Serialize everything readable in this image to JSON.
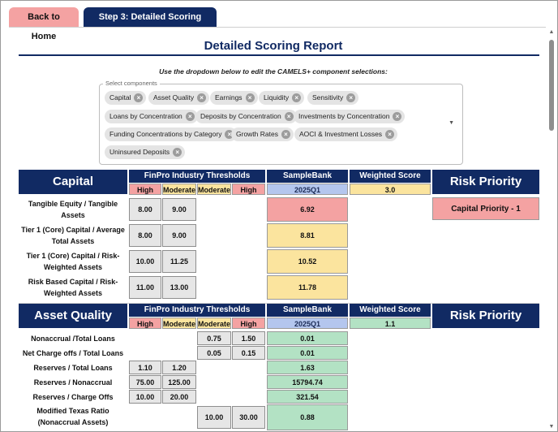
{
  "tabs": {
    "home": "Back to Home",
    "report": "Step 3: Detailed Scoring Report"
  },
  "page": {
    "title": "Detailed Scoring Report",
    "instructions": "Use the dropdown below to edit the CAMELS+ component selections:"
  },
  "selector": {
    "legend": "Select components",
    "chips": [
      "Capital",
      "Asset Quality",
      "Earnings",
      "Liquidity",
      "Sensitivity",
      "Loans by Concentration",
      "Deposits by Concentration",
      "Investments by Concentration",
      "Funding Concentrations by Category",
      "Growth Rates",
      "AOCI & Investment Losses",
      "Uninsured Deposits"
    ]
  },
  "capital": {
    "title": "Capital",
    "thresholds_label": "FinPro Industry Thresholds",
    "bank_label": "SampleBank",
    "wscore_label": "Weighted Score",
    "risk_label": "Risk Priority",
    "sub": [
      "High",
      "Moderate",
      "Moderate",
      "High"
    ],
    "period": "2025Q1",
    "weighted_score": "3.0",
    "risk_priority": "Capital Priority - 1",
    "rows": [
      {
        "label": "Tangible Equity / Tangible Assets",
        "t1": "8.00",
        "t2": "9.00",
        "value": "6.92",
        "status": "red"
      },
      {
        "label": "Tier 1 (Core) Capital / Average Total Assets",
        "t1": "8.00",
        "t2": "9.00",
        "value": "8.81",
        "status": "yellow"
      },
      {
        "label": "Tier 1 (Core) Capital / Risk-Weighted Assets",
        "t1": "10.00",
        "t2": "11.25",
        "value": "10.52",
        "status": "yellow"
      },
      {
        "label": "Risk Based Capital / Risk-Weighted Assets",
        "t1": "11.00",
        "t2": "13.00",
        "value": "11.78",
        "status": "yellow"
      }
    ]
  },
  "asset_quality": {
    "title": "Asset Quality",
    "thresholds_label": "FinPro Industry Thresholds",
    "bank_label": "SampleBank",
    "wscore_label": "Weighted Score",
    "risk_label": "Risk Priority",
    "sub": [
      "High",
      "Moderate",
      "Moderate",
      "High"
    ],
    "period": "2025Q1",
    "weighted_score": "1.1",
    "rows": [
      {
        "label": "Nonaccrual /Total Loans",
        "t3": "0.75",
        "t4": "1.50",
        "value": "0.01"
      },
      {
        "label": "Net Charge offs / Total Loans",
        "t3": "0.05",
        "t4": "0.15",
        "value": "0.01"
      },
      {
        "label": "Reserves / Total Loans",
        "t1": "1.10",
        "t2": "1.20",
        "value": "1.63"
      },
      {
        "label": "Reserves / Nonaccrual",
        "t1": "75.00",
        "t2": "125.00",
        "value": "15794.74"
      },
      {
        "label": "Reserves / Charge Offs",
        "t1": "10.00",
        "t2": "20.00",
        "value": "321.54"
      },
      {
        "label": "Modified Texas Ratio (Nonaccrual Assets)",
        "t3": "10.00",
        "t4": "30.00",
        "value": "0.88"
      }
    ]
  }
}
